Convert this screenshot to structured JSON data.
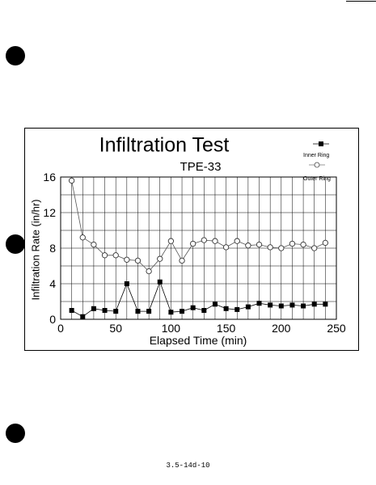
{
  "chart_data": {
    "type": "line",
    "title": "Infiltration Test",
    "subtitle": "TPE-33",
    "xlabel": "Elapsed Time (min)",
    "ylabel": "Infiltration Rate (in/hr)",
    "xlim": [
      0,
      250
    ],
    "ylim": [
      0,
      16
    ],
    "xticks": [
      0,
      50,
      100,
      150,
      200,
      250
    ],
    "yticks": [
      0,
      4,
      8,
      12,
      16
    ],
    "grid": true,
    "legend_position": "top-right",
    "series": [
      {
        "name": "Inner Ring",
        "marker": "filled-square",
        "color": "#000000",
        "x": [
          10,
          20,
          30,
          40,
          50,
          60,
          70,
          80,
          90,
          100,
          110,
          120,
          130,
          140,
          150,
          160,
          170,
          180,
          190,
          200,
          210,
          220,
          230,
          240
        ],
        "values": [
          1.0,
          0.3,
          1.2,
          1.0,
          0.9,
          4.0,
          0.9,
          0.9,
          4.2,
          0.8,
          0.9,
          1.3,
          1.0,
          1.7,
          1.2,
          1.1,
          1.4,
          1.8,
          1.6,
          1.5,
          1.6,
          1.5,
          1.7,
          1.7
        ]
      },
      {
        "name": "Outer Ring",
        "marker": "open-circle",
        "color": "#000000",
        "x": [
          10,
          20,
          30,
          40,
          50,
          60,
          70,
          80,
          90,
          100,
          110,
          120,
          130,
          140,
          150,
          160,
          170,
          180,
          190,
          200,
          210,
          220,
          230,
          240
        ],
        "values": [
          15.6,
          9.2,
          8.4,
          7.2,
          7.2,
          6.7,
          6.6,
          5.4,
          6.8,
          8.8,
          6.6,
          8.5,
          8.9,
          8.8,
          8.1,
          8.8,
          8.3,
          8.4,
          8.1,
          8.0,
          8.5,
          8.4,
          8.0,
          8.6
        ]
      }
    ]
  },
  "footer": {
    "code": "3.5-14d-10"
  }
}
